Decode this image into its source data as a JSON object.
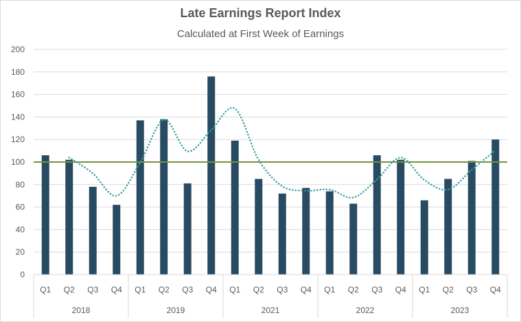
{
  "chart_data": {
    "type": "bar",
    "title": "Late Earnings Report Index",
    "subtitle": "Calculated at First Week of Earnings",
    "xlabel": "",
    "ylabel": "",
    "ylim": [
      0,
      200
    ],
    "yticks": [
      0,
      20,
      40,
      60,
      80,
      100,
      120,
      140,
      160,
      180,
      200
    ],
    "grid": true,
    "legend": "none",
    "groups": [
      {
        "label": "2018",
        "categories": [
          "Q1",
          "Q2",
          "Q3",
          "Q4"
        ]
      },
      {
        "label": "2019",
        "categories": [
          "Q1",
          "Q2",
          "Q3",
          "Q4"
        ]
      },
      {
        "label": "2021",
        "categories": [
          "Q1",
          "Q2",
          "Q3",
          "Q4"
        ]
      },
      {
        "label": "2022",
        "categories": [
          "Q1",
          "Q2",
          "Q3",
          "Q4"
        ]
      },
      {
        "label": "2023",
        "categories": [
          "Q1",
          "Q2",
          "Q3",
          "Q4"
        ]
      }
    ],
    "series": [
      {
        "type": "bar",
        "color": "#284b63",
        "values": [
          106,
          102,
          78,
          62,
          137,
          138,
          81,
          176,
          119,
          85,
          72,
          77,
          74,
          63,
          106,
          102,
          66,
          85,
          101,
          120
        ]
      },
      {
        "type": "line",
        "style": "dotted",
        "trendline": "2-period moving average",
        "color": "#3a9fa0",
        "values": [
          null,
          104,
          90,
          70,
          99.5,
          137.5,
          109.5,
          128.5,
          147.5,
          102,
          78.5,
          74.5,
          75.5,
          68.5,
          84.5,
          104,
          84,
          75.5,
          93,
          110.5
        ]
      },
      {
        "type": "reference-line",
        "color": "#76923c",
        "value": 100
      }
    ]
  }
}
